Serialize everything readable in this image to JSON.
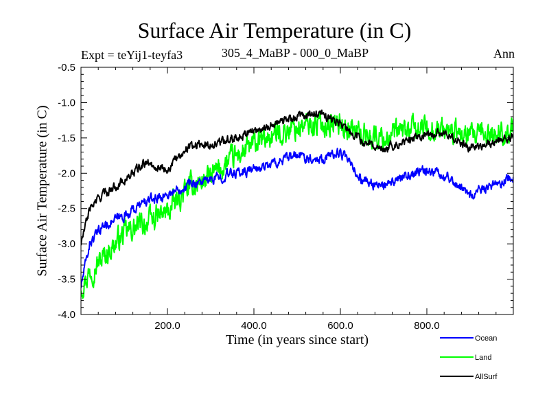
{
  "chart_data": {
    "type": "line",
    "title": "Surface Air Temperature (in C)",
    "expt_label": "Expt = teYij1-teyfa3",
    "subtitle": "305_4_MaBP - 000_0_MaBP",
    "period": "Ann",
    "xlabel": "Time (in years since start)",
    "ylabel": "Surface Air Temperature (in C)",
    "xlim": [
      0,
      1000
    ],
    "ylim": [
      -4.0,
      -0.5
    ],
    "x_ticks": [
      200,
      400,
      600,
      800
    ],
    "x_tick_labels": [
      "200.0",
      "400.0",
      "600.0",
      "800.0"
    ],
    "y_ticks": [
      -4.0,
      -3.5,
      -3.0,
      -2.5,
      -2.0,
      -1.5,
      -1.0,
      -0.5
    ],
    "y_tick_labels": [
      "-4.0",
      "-3.5",
      "-3.0",
      "-2.5",
      "-2.0",
      "-1.5",
      "-1.0",
      "-0.5"
    ],
    "grid": false,
    "legend_position": "bottom-right outside",
    "series": [
      {
        "name": "Ocean",
        "color": "#0000ff",
        "noise": 0.07,
        "x": [
          0,
          20,
          50,
          100,
          150,
          200,
          250,
          300,
          350,
          400,
          450,
          500,
          550,
          600,
          650,
          700,
          750,
          800,
          850,
          900,
          950,
          1000
        ],
        "values": [
          -3.6,
          -3.0,
          -2.75,
          -2.6,
          -2.4,
          -2.3,
          -2.15,
          -2.1,
          -2.0,
          -1.95,
          -1.85,
          -1.75,
          -1.8,
          -1.7,
          -2.1,
          -2.2,
          -2.05,
          -1.95,
          -2.05,
          -2.3,
          -2.2,
          -2.05
        ]
      },
      {
        "name": "Land",
        "color": "#00ff00",
        "noise": 0.17,
        "x": [
          0,
          20,
          50,
          100,
          150,
          200,
          250,
          300,
          350,
          400,
          450,
          500,
          550,
          600,
          650,
          700,
          750,
          800,
          850,
          900,
          950,
          1000
        ],
        "values": [
          -3.6,
          -3.4,
          -3.2,
          -2.85,
          -2.7,
          -2.55,
          -2.2,
          -2.05,
          -1.8,
          -1.6,
          -1.45,
          -1.35,
          -1.3,
          -1.3,
          -1.45,
          -1.5,
          -1.4,
          -1.35,
          -1.4,
          -1.5,
          -1.45,
          -1.4
        ]
      },
      {
        "name": "AllSurf",
        "color": "#000000",
        "noise": 0.06,
        "x": [
          0,
          20,
          50,
          100,
          150,
          200,
          250,
          300,
          350,
          400,
          450,
          500,
          550,
          600,
          650,
          700,
          750,
          800,
          850,
          900,
          950,
          1000
        ],
        "values": [
          -3.0,
          -2.5,
          -2.3,
          -2.1,
          -1.85,
          -1.95,
          -1.6,
          -1.6,
          -1.5,
          -1.4,
          -1.3,
          -1.2,
          -1.15,
          -1.3,
          -1.55,
          -1.65,
          -1.55,
          -1.45,
          -1.45,
          -1.65,
          -1.55,
          -1.5
        ]
      }
    ]
  }
}
